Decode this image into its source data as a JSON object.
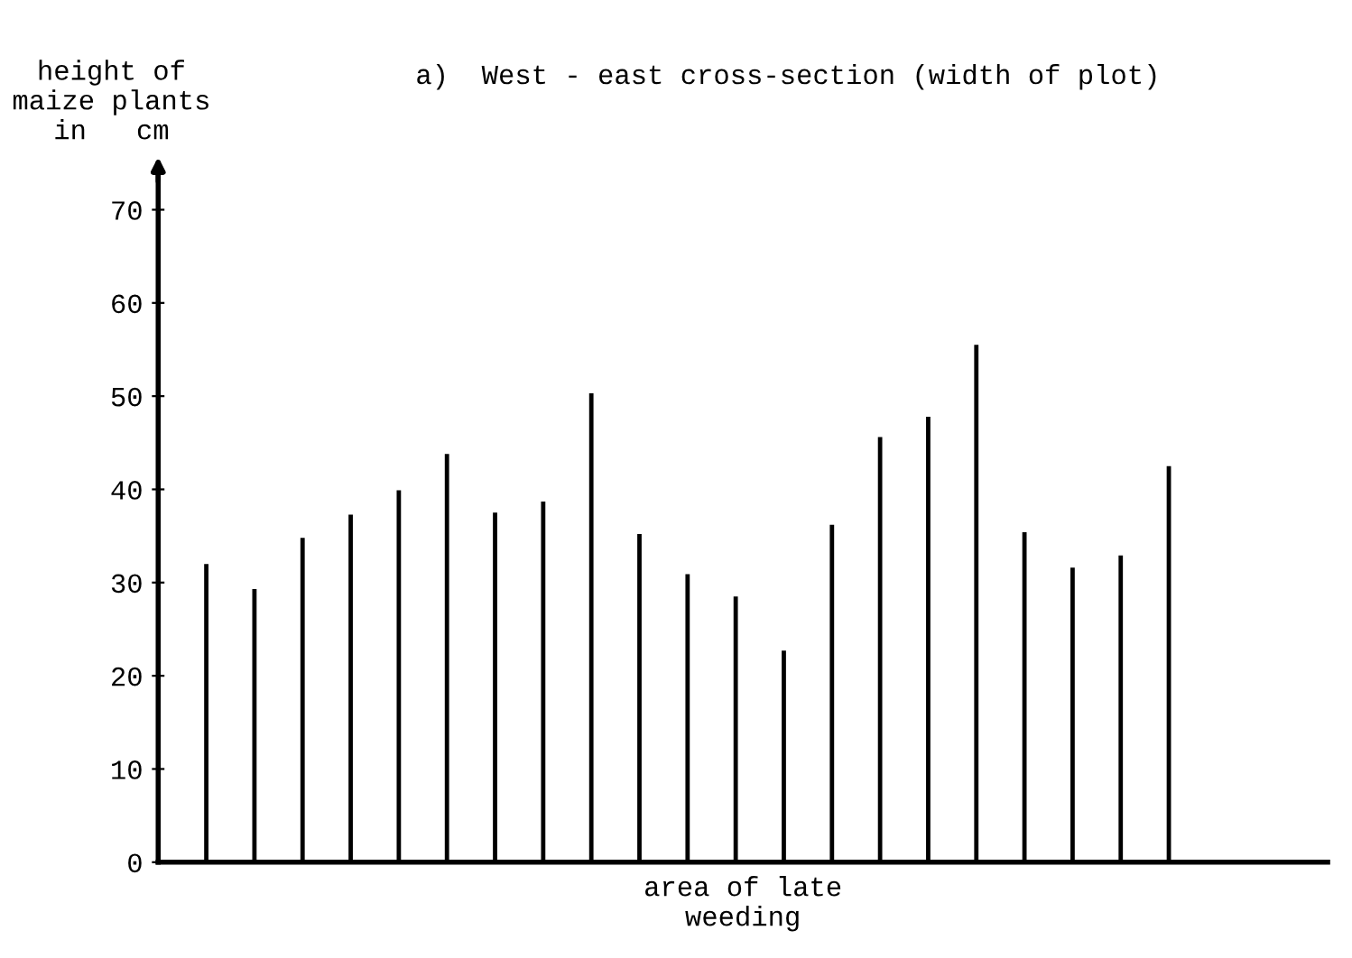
{
  "chart_data": {
    "type": "bar",
    "title": "a)  West - east cross-section (width of plot)",
    "ylabel": "height of\nmaize plants\nin   cm",
    "xlabel": "area of late\nweeding",
    "categories": [
      null,
      null,
      null,
      null,
      null,
      null,
      null,
      null,
      null,
      null,
      null,
      null,
      null,
      null,
      null,
      null,
      null,
      null,
      null,
      null,
      null
    ],
    "values": [
      32,
      29.3,
      34.8,
      37.3,
      39.9,
      43.8,
      37.5,
      38.7,
      50.3,
      35.2,
      30.9,
      28.5,
      22.7,
      36.2,
      45.6,
      47.8,
      55.5,
      35.4,
      31.6,
      32.9,
      42.5
    ],
    "color": "#000000",
    "ylim": [
      0,
      74
    ],
    "yticks": [
      0,
      10,
      20,
      30,
      40,
      50,
      60,
      70
    ],
    "grid": false
  }
}
